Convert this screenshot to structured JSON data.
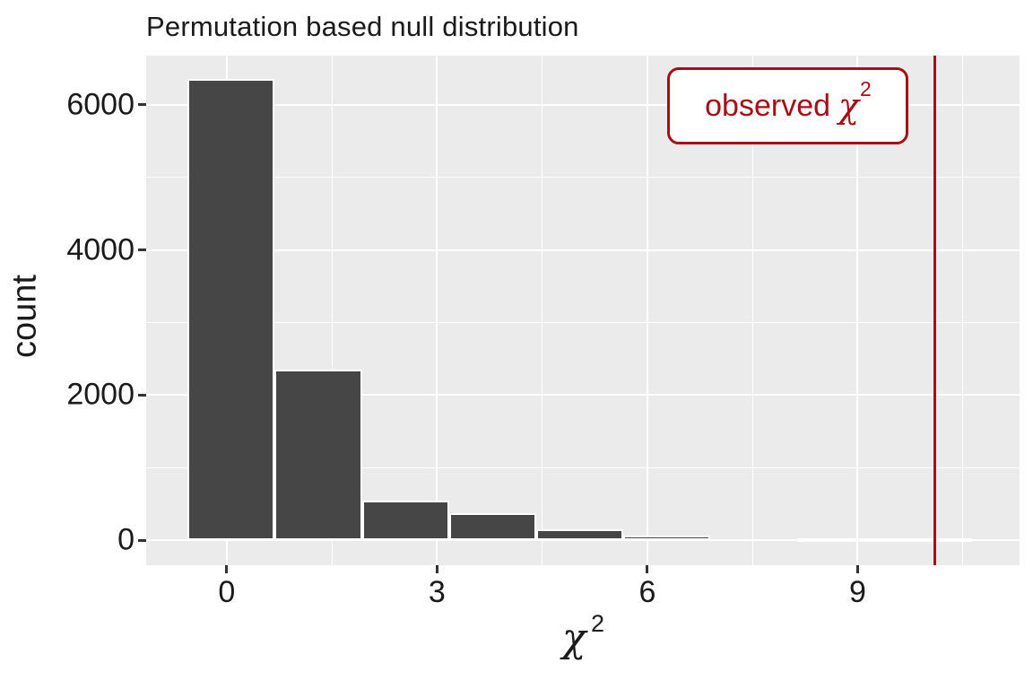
{
  "title": "Permutation based null distribution",
  "y_axis_title": "count",
  "x_axis_title": {
    "chi": "χ",
    "sup": "2"
  },
  "annotation": {
    "word": "observed",
    "chi": "χ",
    "sup": "2"
  },
  "chart_data": {
    "type": "bar",
    "subtype": "histogram",
    "title": "Permutation based null distribution",
    "xlabel": "χ²",
    "ylabel": "count",
    "bin_edges": [
      -0.56,
      0.68,
      1.93,
      3.17,
      4.41,
      5.66,
      6.9,
      8.14,
      9.39,
      10.63
    ],
    "counts": [
      6360,
      2350,
      550,
      370,
      150,
      60,
      0,
      30,
      10
    ],
    "observed_chi_sq": 10.1,
    "observed_line_label": "observed χ²",
    "x_ticks": [
      0,
      3,
      6,
      9
    ],
    "x_tick_labels": [
      "0",
      "3",
      "6",
      "9"
    ],
    "x_minor_breaks": [
      1.5,
      4.5,
      7.5,
      10.5
    ],
    "y_ticks": [
      0,
      2000,
      4000,
      6000
    ],
    "y_tick_labels": [
      "0",
      "2000",
      "4000",
      "6000"
    ],
    "y_minor_breaks": [
      1000,
      3000,
      5000
    ],
    "xlim": [
      -1.15,
      11.31
    ],
    "ylim": [
      -346,
      6678
    ],
    "grid": true,
    "legend": "none",
    "colors": {
      "bar_fill": "#464646",
      "bar_outline": "#ffffff",
      "panel_background": "#EBEBEB",
      "gridline": "#ffffff",
      "observed_line": "#A50F15",
      "annotation_text": "#A50F15",
      "text": "#1a1a1a"
    }
  }
}
